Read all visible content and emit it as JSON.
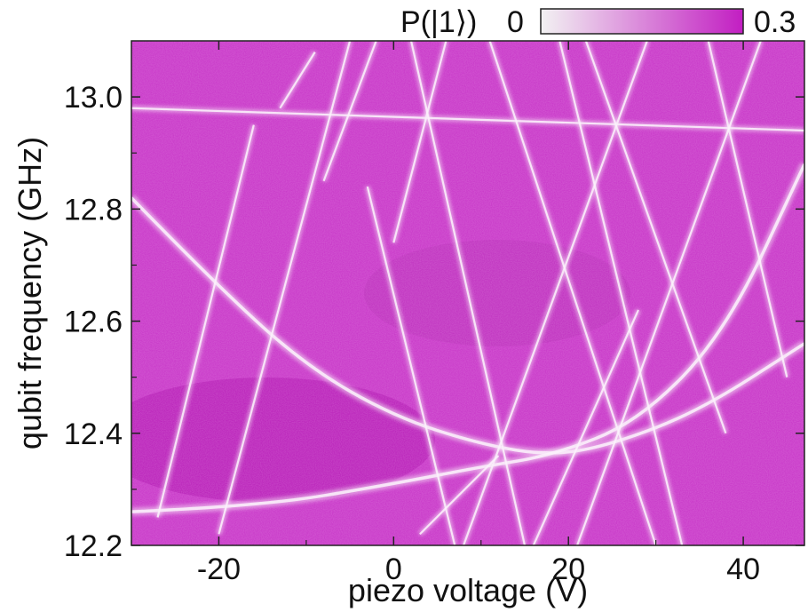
{
  "chart_data": {
    "type": "heatmap",
    "xlabel": "piezo voltage (V)",
    "ylabel": "qubit frequency (GHz)",
    "xlim": [
      -30,
      47
    ],
    "ylim": [
      12.2,
      13.1
    ],
    "x_ticks": [
      -20,
      0,
      20,
      40
    ],
    "x_tick_labels": [
      "-20",
      "0",
      "20",
      "40"
    ],
    "y_ticks": [
      12.2,
      12.4,
      12.6,
      12.8,
      13.0
    ],
    "y_tick_labels": [
      "12.2",
      "12.4",
      "12.6",
      "12.8",
      "13.0"
    ],
    "grid": false,
    "colorbar": {
      "label": "P(|1⟩)",
      "min_label": "0",
      "max_label": "0.3",
      "min": 0,
      "max": 0.3,
      "color_low": "#f2f2f2",
      "color_high": "#c21ec2",
      "placement": "top-right"
    },
    "background_level": 0.27,
    "curves": [
      {
        "kind": "parabola",
        "points": [
          [
            -30,
            12.82
          ],
          [
            -20,
            12.66
          ],
          [
            -10,
            12.52
          ],
          [
            0,
            12.43
          ],
          [
            10,
            12.38
          ],
          [
            18,
            12.36
          ],
          [
            25,
            12.38
          ],
          [
            35,
            12.44
          ],
          [
            47,
            12.56
          ]
        ]
      },
      {
        "kind": "parabola",
        "points": [
          [
            -30,
            12.26
          ],
          [
            -15,
            12.27
          ],
          [
            0,
            12.31
          ],
          [
            10,
            12.34
          ],
          [
            18,
            12.36
          ],
          [
            28,
            12.42
          ],
          [
            38,
            12.58
          ],
          [
            47,
            12.88
          ]
        ]
      },
      {
        "kind": "line",
        "points": [
          [
            -30,
            12.98
          ],
          [
            47,
            12.94
          ]
        ]
      },
      {
        "kind": "line",
        "points": [
          [
            -20,
            12.22
          ],
          [
            -5,
            13.1
          ]
        ]
      },
      {
        "kind": "line",
        "points": [
          [
            -13,
            12.98
          ],
          [
            -9,
            13.08
          ]
        ]
      },
      {
        "kind": "line",
        "points": [
          [
            -3,
            12.84
          ],
          [
            7,
            12.2
          ]
        ]
      },
      {
        "kind": "line",
        "points": [
          [
            0,
            12.74
          ],
          [
            6,
            13.1
          ]
        ]
      },
      {
        "kind": "line",
        "points": [
          [
            2,
            13.1
          ],
          [
            15,
            12.2
          ]
        ]
      },
      {
        "kind": "line",
        "points": [
          [
            8,
            12.2
          ],
          [
            29,
            13.1
          ]
        ]
      },
      {
        "kind": "line",
        "points": [
          [
            3,
            12.22
          ],
          [
            12,
            12.36
          ]
        ]
      },
      {
        "kind": "line",
        "points": [
          [
            11,
            13.1
          ],
          [
            30,
            12.2
          ]
        ]
      },
      {
        "kind": "line",
        "points": [
          [
            19,
            13.1
          ],
          [
            33,
            12.2
          ]
        ]
      },
      {
        "kind": "line",
        "points": [
          [
            22,
            13.1
          ],
          [
            38,
            12.4
          ]
        ]
      },
      {
        "kind": "line",
        "points": [
          [
            36,
            13.1
          ],
          [
            45,
            12.5
          ]
        ]
      },
      {
        "kind": "line",
        "points": [
          [
            21,
            12.2
          ],
          [
            42,
            13.1
          ]
        ]
      },
      {
        "kind": "line",
        "points": [
          [
            16,
            12.2
          ],
          [
            28,
            12.62
          ]
        ]
      },
      {
        "kind": "line",
        "points": [
          [
            -8,
            12.85
          ],
          [
            -2,
            13.1
          ]
        ]
      },
      {
        "kind": "line",
        "points": [
          [
            -27,
            12.25
          ],
          [
            -16,
            12.95
          ]
        ]
      }
    ]
  }
}
